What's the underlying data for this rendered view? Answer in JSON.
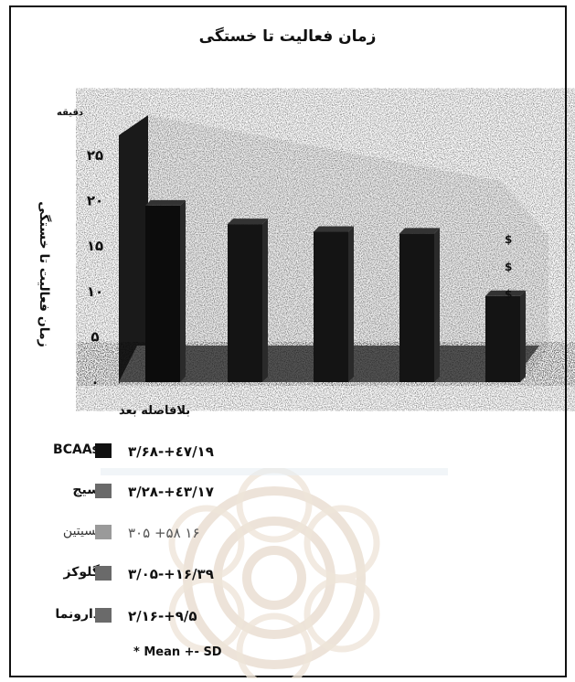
{
  "chart_data": {
    "type": "bar",
    "title": "زمان فعالیت تا خستگی",
    "unit": "دقیقه",
    "ylabel": "زمان فعالیت تا خستگی",
    "xlabel": "بلافاصله بعد",
    "ylim": [
      0,
      25
    ],
    "y_ticks": [
      "۰",
      "۵",
      "۱۰",
      "۱۵",
      "۲۰",
      "۲۵"
    ],
    "y_tick_values": [
      0,
      5,
      10,
      15,
      20,
      25
    ],
    "grid": false,
    "three_d": true,
    "series": [
      {
        "name": "BCAAs",
        "value": 19.47,
        "sd": 3.68,
        "label": "۱۹/٤۷+-۳/۶۸",
        "color": "#111111",
        "marker": ""
      },
      {
        "name": "سیج",
        "value": 17.43,
        "sd": 3.28,
        "label": "۱۷/٤۳+-۳/۲۸",
        "color": "#6a6a6a",
        "marker": ""
      },
      {
        "name": "لسیتین",
        "value": 16.58,
        "sd": 3.05,
        "label": "۱۶ ۵۸+ ۳۰۵",
        "color": "#9a9a9a",
        "marker": ""
      },
      {
        "name": "گلوکز",
        "value": 16.39,
        "sd": 3.05,
        "label": "۱۶/۳۹+-۳/۰۵",
        "color": "#6a6a6a",
        "marker": ""
      },
      {
        "name": "دارونما",
        "value": 9.5,
        "sd": 2.16,
        "label": "۹/۵+-۲/۱۶",
        "color": "#6a6a6a",
        "marker": "$"
      }
    ],
    "significance_marks": [
      "$",
      "$",
      "$"
    ]
  },
  "footnote": "* Mean +- SD"
}
